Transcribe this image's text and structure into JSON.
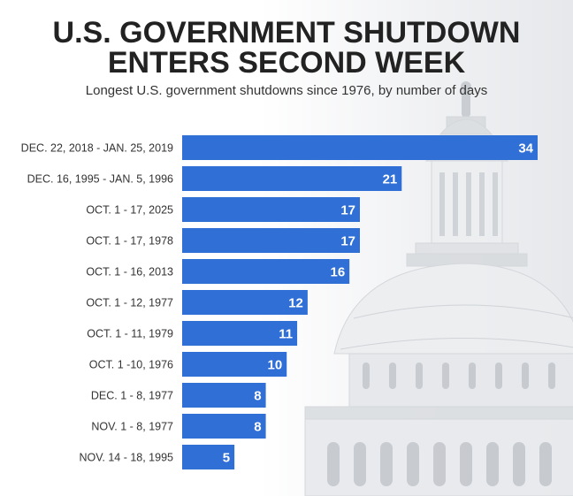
{
  "title_line1": "U.S. GOVERNMENT SHUTDOWN",
  "title_line2": "ENTERS SECOND WEEK",
  "subtitle": "Longest U.S. government shutdowns since 1976, by number of days",
  "colors": {
    "bar": "#2f6fd6",
    "title": "#222222",
    "label": "#333333"
  },
  "chart_data": {
    "type": "bar",
    "orientation": "horizontal",
    "title": "U.S. GOVERNMENT SHUTDOWN ENTERS SECOND WEEK",
    "subtitle": "Longest U.S. government shutdowns since 1976, by number of days",
    "categories": [
      "DEC. 22, 2018 - JAN. 25, 2019",
      "DEC. 16, 1995 - JAN. 5, 1996",
      "OCT. 1 - 17, 2025",
      "OCT. 1 - 17, 1978",
      "OCT. 1 - 16, 2013",
      "OCT. 1 - 12, 1977",
      "OCT. 1 - 11, 1979",
      "OCT. 1 -10, 1976",
      "DEC. 1 - 8, 1977",
      "NOV. 1 - 8, 1977",
      "NOV. 14 - 18, 1995"
    ],
    "values": [
      34,
      21,
      17,
      17,
      16,
      12,
      11,
      10,
      8,
      8,
      5
    ],
    "xlim": [
      0,
      34
    ],
    "xlabel": "",
    "ylabel": "",
    "grid": false,
    "legend": "none"
  }
}
